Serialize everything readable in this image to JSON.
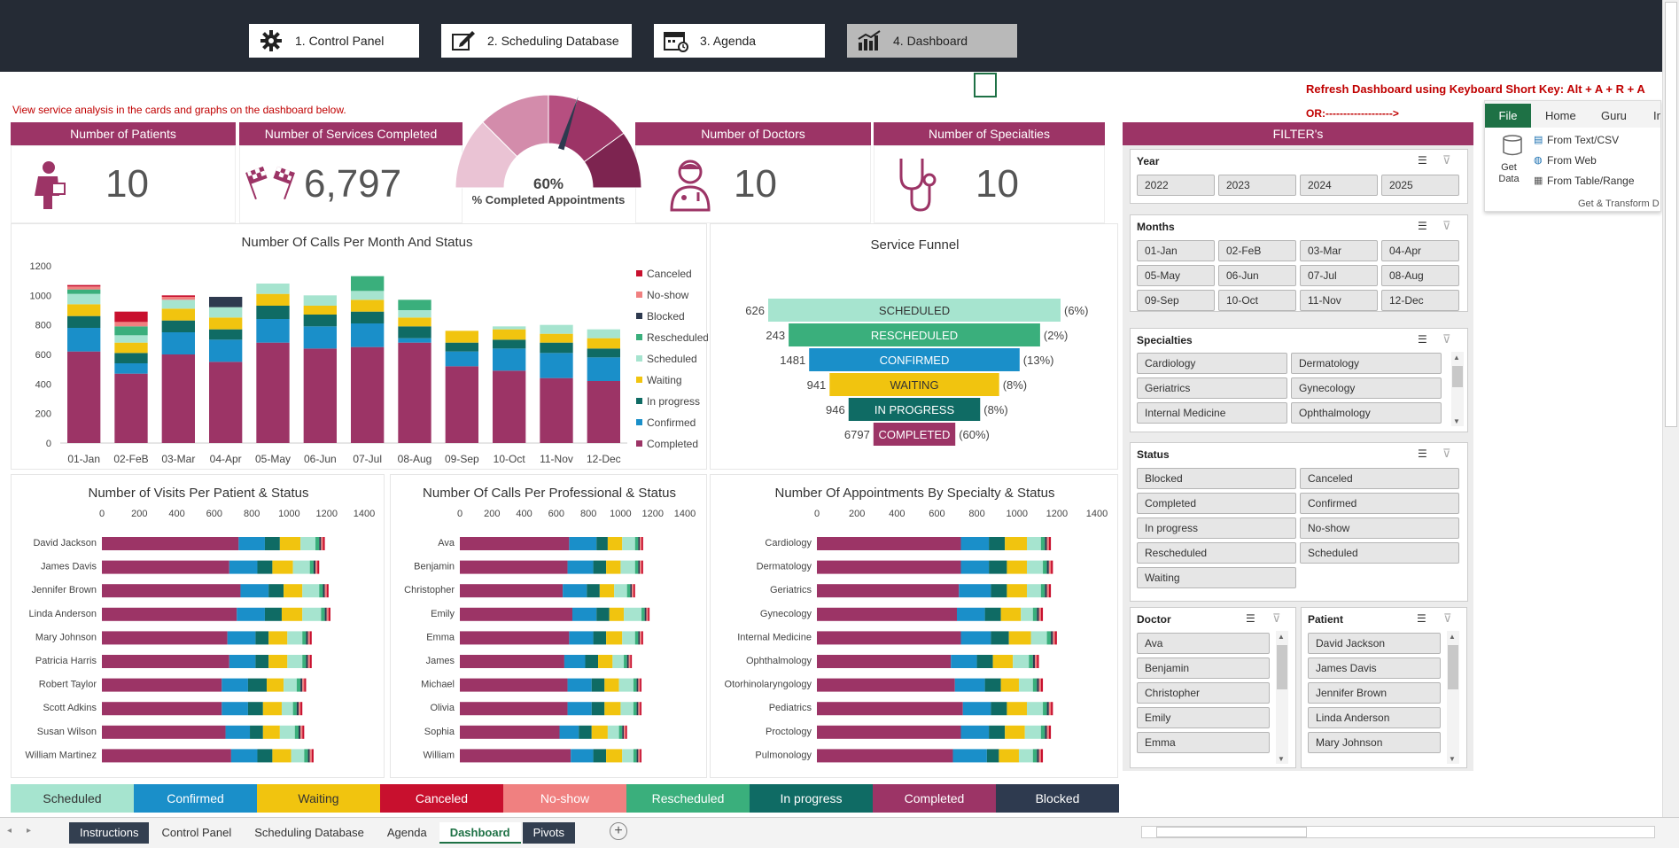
{
  "nav": [
    {
      "label": "1. Control Panel",
      "icon": "gear-icon"
    },
    {
      "label": "2. Scheduling Database",
      "icon": "edit-icon"
    },
    {
      "label": "3. Agenda",
      "icon": "calendar-icon"
    },
    {
      "label": "4. Dashboard",
      "icon": "chart-icon"
    }
  ],
  "notes": {
    "intro": "View service analysis in the cards and graphs on the dashboard below.",
    "refresh": "Refresh Dashboard using Keyboard Short Key: Alt + A + R + A",
    "or": "OR:------------------->"
  },
  "cards": {
    "patients": {
      "label": "Number of  Patients",
      "value": "10"
    },
    "services": {
      "label": "Number of Services Completed",
      "value": "6,797"
    },
    "doctors": {
      "label": "Number of Doctors",
      "value": "10"
    },
    "specialties": {
      "label": "Number of Specialties",
      "value": "10"
    }
  },
  "gauge": {
    "percent": "60%",
    "label": "% Completed Appointments",
    "value": 0.6
  },
  "ribbon": {
    "tabs": [
      "File",
      "Home",
      "Guru",
      "In"
    ],
    "get_data": "Get Data",
    "items": [
      "From Text/CSV",
      "From Web",
      "From Table/Range"
    ],
    "group": "Get & Transform D"
  },
  "filters": {
    "title": "FILTER's",
    "year": {
      "title": "Year",
      "items": [
        "2022",
        "2023",
        "2024",
        "2025"
      ]
    },
    "months": {
      "title": "Months",
      "items": [
        "01-Jan",
        "02-FeB",
        "03-Mar",
        "04-Apr",
        "05-May",
        "06-Jun",
        "07-Jul",
        "08-Aug",
        "09-Sep",
        "10-Oct",
        "11-Nov",
        "12-Dec"
      ]
    },
    "specialties": {
      "title": "Specialties",
      "items": [
        "Cardiology",
        "Dermatology",
        "Geriatrics",
        "Gynecology",
        "Internal Medicine",
        "Ophthalmology"
      ]
    },
    "status": {
      "title": "Status",
      "items": [
        "Blocked",
        "Canceled",
        "Completed",
        "Confirmed",
        "In progress",
        "No-show",
        "Rescheduled",
        "Scheduled",
        "Waiting"
      ]
    },
    "doctor": {
      "title": "Doctor",
      "items": [
        "Ava",
        "Benjamin",
        "Christopher",
        "Emily",
        "Emma"
      ]
    },
    "patient": {
      "title": "Patient",
      "items": [
        "David Jackson",
        "James Davis",
        "Jennifer Brown",
        "Linda Anderson",
        "Mary Johnson"
      ]
    }
  },
  "colors": {
    "Completed": "#9c3466",
    "Confirmed": "#1a8fc9",
    "In progress": "#0f6b64",
    "Rescheduled": "#3aaf7c",
    "Scheduled": "#a6e4cf",
    "Waiting": "#f1c40f",
    "Blocked": "#2e3a4f",
    "No-show": "#f08080",
    "Canceled": "#c8102e"
  },
  "legend": [
    "Scheduled",
    "Confirmed",
    "Waiting",
    "Canceled",
    "No-show",
    "Rescheduled",
    "In progress",
    "Completed",
    "Blocked"
  ],
  "chart_data": [
    {
      "type": "bar",
      "title": "Number Of Calls Per Month And Status",
      "stacked": true,
      "categories": [
        "01-Jan",
        "02-FeB",
        "03-Mar",
        "04-Apr",
        "05-May",
        "06-Jun",
        "07-Jul",
        "08-Aug",
        "09-Sep",
        "10-Oct",
        "11-Nov",
        "12-Dec"
      ],
      "ylim": [
        0,
        1200
      ],
      "yticks": [
        0,
        200,
        400,
        600,
        800,
        1000,
        1200
      ],
      "legend_order": [
        "Canceled",
        "No-show",
        "Blocked",
        "Rescheduled",
        "Scheduled",
        "Waiting",
        "In progress",
        "Confirmed",
        "Completed"
      ],
      "series": [
        {
          "name": "Completed",
          "values": [
            620,
            470,
            600,
            550,
            680,
            640,
            650,
            680,
            520,
            490,
            440,
            420
          ]
        },
        {
          "name": "Confirmed",
          "values": [
            160,
            70,
            150,
            150,
            160,
            150,
            160,
            30,
            100,
            150,
            170,
            160
          ]
        },
        {
          "name": "In progress",
          "values": [
            80,
            70,
            80,
            70,
            90,
            80,
            80,
            80,
            60,
            60,
            70,
            60
          ]
        },
        {
          "name": "Waiting",
          "values": [
            80,
            70,
            80,
            80,
            80,
            60,
            80,
            60,
            80,
            70,
            60,
            70
          ]
        },
        {
          "name": "Scheduled",
          "values": [
            70,
            50,
            60,
            70,
            70,
            70,
            60,
            50,
            0,
            20,
            60,
            60
          ]
        },
        {
          "name": "Rescheduled",
          "values": [
            30,
            60,
            0,
            0,
            0,
            0,
            100,
            70,
            0,
            0,
            0,
            0
          ]
        },
        {
          "name": "Blocked",
          "values": [
            0,
            0,
            0,
            70,
            0,
            0,
            0,
            0,
            0,
            0,
            0,
            0
          ]
        },
        {
          "name": "No-show",
          "values": [
            20,
            30,
            20,
            0,
            0,
            0,
            0,
            0,
            0,
            0,
            0,
            0
          ]
        },
        {
          "name": "Canceled",
          "values": [
            10,
            70,
            10,
            0,
            0,
            0,
            0,
            0,
            0,
            0,
            0,
            0
          ]
        }
      ]
    },
    {
      "type": "bar",
      "title": "Service Funnel",
      "categories": [
        "SCHEDULED",
        "RESCHEDULED",
        "CONFIRMED",
        "WAITING",
        "IN PROGRESS",
        "COMPLETED"
      ],
      "values": [
        626,
        243,
        1481,
        941,
        946,
        6797
      ],
      "percent_labels": [
        "(6%)",
        "(2%)",
        "(13%)",
        "(8%)",
        "(8%)",
        "(60%)"
      ]
    },
    {
      "type": "bar",
      "title": "Number of Visits Per Patient & Status",
      "orientation": "horizontal",
      "stacked": true,
      "xlim": [
        0,
        1400
      ],
      "xticks": [
        0,
        200,
        400,
        600,
        800,
        1000,
        1200,
        1400
      ],
      "categories": [
        "David Jackson",
        "James Davis",
        "Jennifer Brown",
        "Linda Anderson",
        "Mary Johnson",
        "Patricia Harris",
        "Robert Taylor",
        "Scott Adkins",
        "Susan Wilson",
        "William Martinez"
      ],
      "series": [
        {
          "name": "Completed",
          "values": [
            730,
            680,
            740,
            720,
            670,
            680,
            640,
            640,
            660,
            690
          ]
        },
        {
          "name": "Confirmed",
          "values": [
            140,
            150,
            150,
            150,
            150,
            140,
            140,
            140,
            130,
            140
          ]
        },
        {
          "name": "In progress",
          "values": [
            80,
            80,
            80,
            90,
            70,
            70,
            100,
            80,
            70,
            80
          ]
        },
        {
          "name": "Waiting",
          "values": [
            110,
            110,
            100,
            110,
            100,
            100,
            90,
            100,
            90,
            100
          ]
        },
        {
          "name": "Scheduled",
          "values": [
            80,
            90,
            90,
            100,
            80,
            80,
            70,
            60,
            80,
            70
          ]
        },
        {
          "name": "Rescheduled",
          "values": [
            20,
            20,
            20,
            20,
            20,
            20,
            20,
            20,
            20,
            20
          ]
        },
        {
          "name": "Blocked",
          "values": [
            10,
            10,
            10,
            10,
            10,
            10,
            10,
            10,
            10,
            10
          ]
        },
        {
          "name": "No-show",
          "values": [
            10,
            10,
            10,
            10,
            10,
            10,
            10,
            10,
            10,
            10
          ]
        },
        {
          "name": "Canceled",
          "values": [
            10,
            10,
            10,
            10,
            10,
            10,
            10,
            10,
            10,
            10
          ]
        }
      ]
    },
    {
      "type": "bar",
      "title": "Number Of Calls Per Professional & Status",
      "orientation": "horizontal",
      "stacked": true,
      "xlim": [
        0,
        1400
      ],
      "xticks": [
        0,
        200,
        400,
        600,
        800,
        1000,
        1200,
        1400
      ],
      "categories": [
        "Ava",
        "Benjamin",
        "Christopher",
        "Emily",
        "Emma",
        "James",
        "Michael",
        "Olivia",
        "Sophia",
        "William"
      ],
      "series": [
        {
          "name": "Completed",
          "values": [
            680,
            670,
            640,
            700,
            680,
            650,
            670,
            670,
            620,
            690
          ]
        },
        {
          "name": "Confirmed",
          "values": [
            170,
            160,
            150,
            150,
            150,
            130,
            150,
            150,
            120,
            140
          ]
        },
        {
          "name": "In progress",
          "values": [
            70,
            80,
            80,
            80,
            80,
            80,
            80,
            80,
            80,
            80
          ]
        },
        {
          "name": "Waiting",
          "values": [
            90,
            90,
            90,
            90,
            100,
            90,
            90,
            100,
            100,
            100
          ]
        },
        {
          "name": "Scheduled",
          "values": [
            80,
            90,
            80,
            110,
            80,
            70,
            90,
            80,
            70,
            70
          ]
        },
        {
          "name": "Rescheduled",
          "values": [
            20,
            20,
            20,
            20,
            20,
            20,
            20,
            20,
            20,
            20
          ]
        },
        {
          "name": "Blocked",
          "values": [
            10,
            10,
            10,
            10,
            10,
            10,
            10,
            10,
            10,
            10
          ]
        },
        {
          "name": "No-show",
          "values": [
            10,
            10,
            10,
            10,
            10,
            10,
            10,
            10,
            10,
            10
          ]
        },
        {
          "name": "Canceled",
          "values": [
            10,
            10,
            10,
            10,
            10,
            10,
            10,
            10,
            10,
            10
          ]
        }
      ]
    },
    {
      "type": "bar",
      "title": "Number Of Appointments By Specialty & Status",
      "orientation": "horizontal",
      "stacked": true,
      "xlim": [
        0,
        1400
      ],
      "xticks": [
        0,
        200,
        400,
        600,
        800,
        1000,
        1200,
        1400
      ],
      "categories": [
        "Cardiology",
        "Dermatology",
        "Geriatrics",
        "Gynecology",
        "Internal Medicine",
        "Ophthalmology",
        "Otorhinolaryngology",
        "Pediatrics",
        "Proctology",
        "Pulmonology"
      ],
      "series": [
        {
          "name": "Completed",
          "values": [
            720,
            720,
            710,
            700,
            720,
            670,
            690,
            730,
            720,
            680
          ]
        },
        {
          "name": "Confirmed",
          "values": [
            140,
            140,
            160,
            140,
            150,
            130,
            150,
            140,
            140,
            170
          ]
        },
        {
          "name": "In progress",
          "values": [
            80,
            90,
            80,
            80,
            90,
            80,
            80,
            80,
            80,
            60
          ]
        },
        {
          "name": "Waiting",
          "values": [
            110,
            100,
            100,
            100,
            110,
            100,
            90,
            100,
            100,
            100
          ]
        },
        {
          "name": "Scheduled",
          "values": [
            70,
            80,
            70,
            60,
            80,
            80,
            70,
            80,
            80,
            70
          ]
        },
        {
          "name": "Rescheduled",
          "values": [
            20,
            20,
            20,
            20,
            20,
            20,
            20,
            20,
            20,
            20
          ]
        },
        {
          "name": "Blocked",
          "values": [
            10,
            10,
            10,
            10,
            10,
            10,
            10,
            10,
            10,
            10
          ]
        },
        {
          "name": "No-show",
          "values": [
            10,
            10,
            10,
            10,
            10,
            10,
            10,
            10,
            10,
            10
          ]
        },
        {
          "name": "Canceled",
          "values": [
            10,
            10,
            10,
            10,
            10,
            10,
            10,
            10,
            10,
            10
          ]
        }
      ]
    }
  ],
  "sheets": [
    "Instructions",
    "Control Panel",
    "Scheduling Database",
    "Agenda",
    "Dashboard",
    "Pivots"
  ],
  "active_sheet": "Dashboard"
}
